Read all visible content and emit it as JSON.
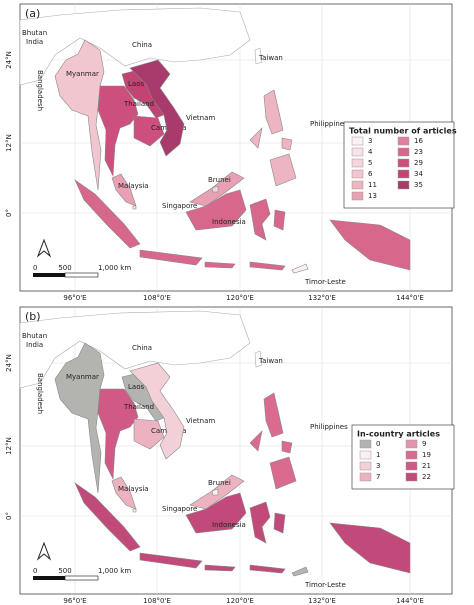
{
  "panels": [
    {
      "label": "(a)",
      "legend": {
        "title": "Total number of articles",
        "items": [
          {
            "label": "3",
            "color": "#fbf0f2"
          },
          {
            "label": "4",
            "color": "#f8e3e7"
          },
          {
            "label": "5",
            "color": "#f5d5dc"
          },
          {
            "label": "6",
            "color": "#f1c6cf"
          },
          {
            "label": "11",
            "color": "#edb4c1"
          },
          {
            "label": "13",
            "color": "#e8a1b3"
          },
          {
            "label": "16",
            "color": "#e0819d"
          },
          {
            "label": "23",
            "color": "#d8678c"
          },
          {
            "label": "29",
            "color": "#cd4f7d"
          },
          {
            "label": "34",
            "color": "#c04474"
          },
          {
            "label": "35",
            "color": "#a93a6c"
          }
        ]
      },
      "regions": [
        {
          "name": "Myanmar",
          "color": "#f1c6cf"
        },
        {
          "name": "Laos",
          "color": "#c04474"
        },
        {
          "name": "Thailand",
          "color": "#cd4f7d"
        },
        {
          "name": "Cambodia",
          "color": "#cd4f7d"
        },
        {
          "name": "Vietnam",
          "color": "#a93a6c"
        },
        {
          "name": "Malaysia",
          "color": "#e8a1b3"
        },
        {
          "name": "Singapore",
          "color": "#f8e3e7"
        },
        {
          "name": "Brunei",
          "color": "#f5d5dc"
        },
        {
          "name": "Indonesia",
          "color": "#d8678c"
        },
        {
          "name": "Philippines",
          "color": "#edb4c1"
        },
        {
          "name": "Timor-Leste",
          "color": "#fbf0f2"
        }
      ]
    },
    {
      "label": "(b)",
      "legend": {
        "title": "In-country articles",
        "items": [
          {
            "label": "0",
            "color": "#b3b3b0"
          },
          {
            "label": "1",
            "color": "#fbf0f2"
          },
          {
            "label": "3",
            "color": "#f3cfd7"
          },
          {
            "label": "7",
            "color": "#edb2c0"
          },
          {
            "label": "9",
            "color": "#e494aa"
          },
          {
            "label": "19",
            "color": "#da6a8e"
          },
          {
            "label": "21",
            "color": "#d05985"
          },
          {
            "label": "22",
            "color": "#c24a7b"
          }
        ]
      },
      "regions": [
        {
          "name": "Myanmar",
          "color": "#b3b3b0"
        },
        {
          "name": "Laos",
          "color": "#b3b3b0"
        },
        {
          "name": "Thailand",
          "color": "#d05985"
        },
        {
          "name": "Cambodia",
          "color": "#edb2c0"
        },
        {
          "name": "Vietnam",
          "color": "#f3cfd7"
        },
        {
          "name": "Malaysia",
          "color": "#edb2c0"
        },
        {
          "name": "Singapore",
          "color": "#fbf0f2"
        },
        {
          "name": "Brunei",
          "color": "#fbf0f2"
        },
        {
          "name": "Indonesia",
          "color": "#c24a7b"
        },
        {
          "name": "Philippines",
          "color": "#da6a8e"
        },
        {
          "name": "Timor-Leste",
          "color": "#b3b3b0"
        }
      ]
    }
  ],
  "other_labels": [
    "Bhutan",
    "India",
    "China",
    "Bangladesh",
    "Taiwan"
  ],
  "lat_labels": [
    "24°N",
    "12°N",
    "0°"
  ],
  "lon_labels": [
    "96°0'E",
    "108°0'E",
    "120°0'E",
    "132°0'E",
    "144°0'E"
  ],
  "scale_bar": [
    "0",
    "500",
    "1,000 km"
  ]
}
